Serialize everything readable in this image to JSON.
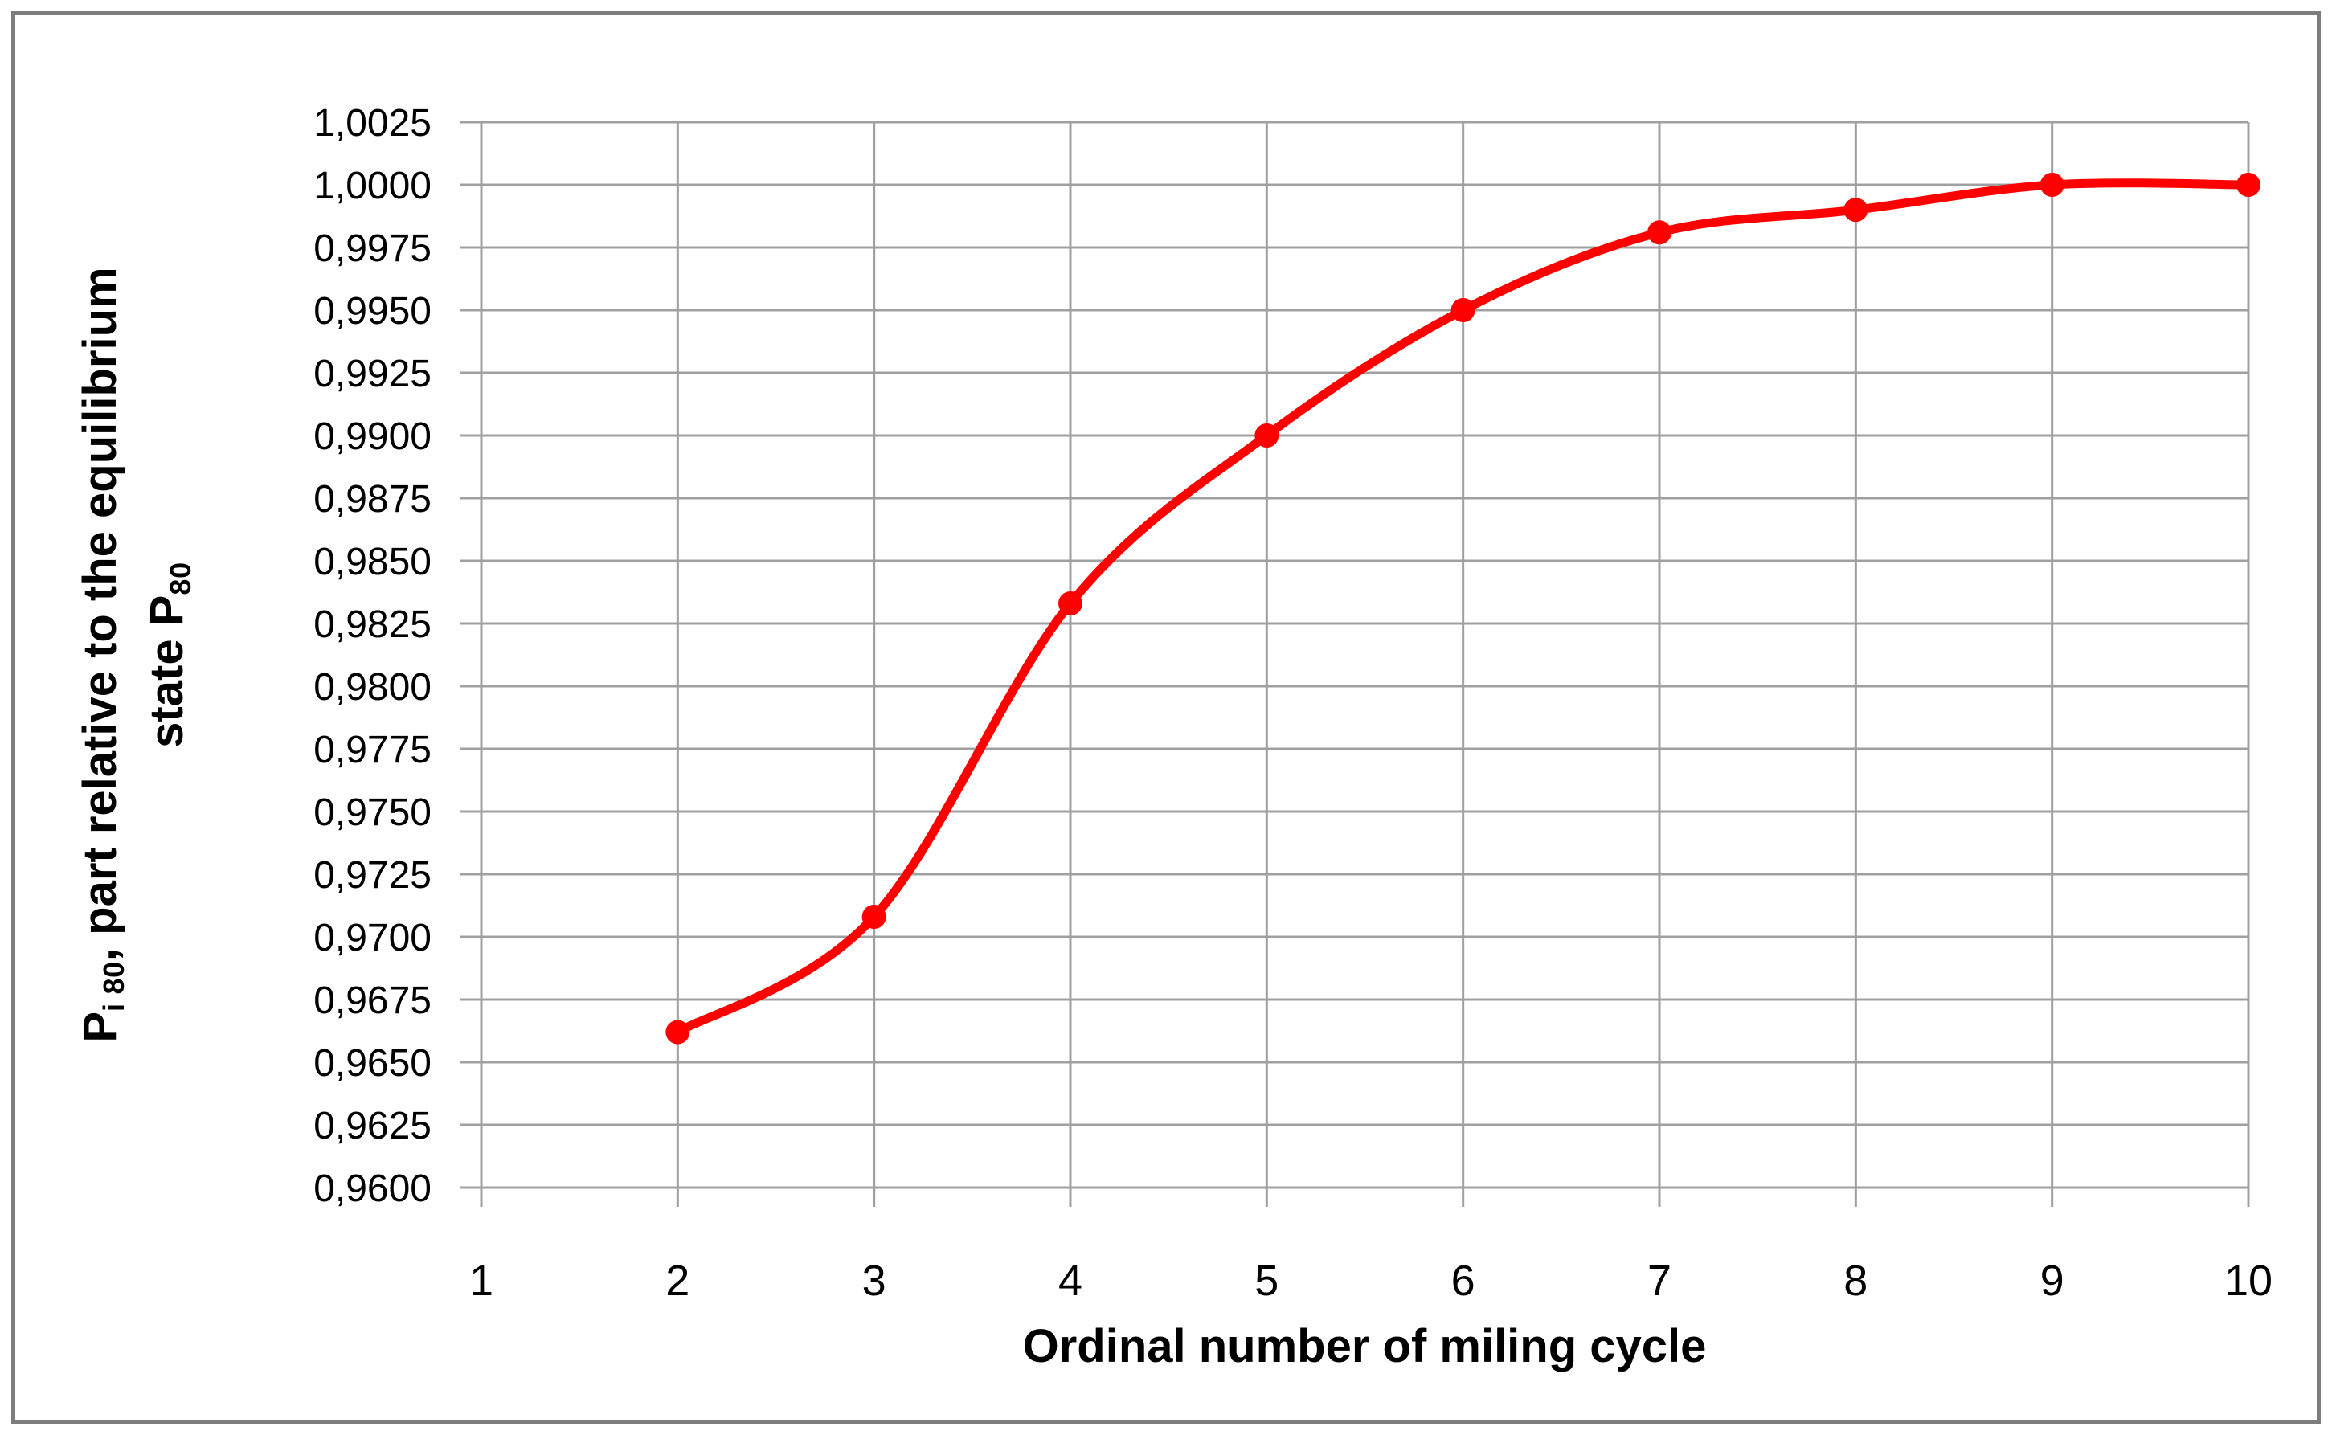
{
  "chart_data": {
    "type": "line",
    "x": [
      2,
      3,
      4,
      5,
      6,
      7,
      8,
      9,
      10
    ],
    "y": [
      0.9662,
      0.9708,
      0.9833,
      0.99,
      0.995,
      0.9981,
      0.999,
      1.0,
      1.0
    ],
    "xlabel": "Ordinal number of miling cycle",
    "ylabel_plain": "P i80, part relative to the equilibrium state P80",
    "ylabel_lines": [
      [
        {
          "t": "P",
          "sub": false
        },
        {
          "t": "i 80",
          "sub": true
        },
        {
          "t": ", part relative to the equilibrium",
          "sub": false
        }
      ],
      [
        {
          "t": "state P",
          "sub": false
        },
        {
          "t": "80",
          "sub": true
        }
      ]
    ],
    "x_ticks": {
      "values": [
        1,
        2,
        3,
        4,
        5,
        6,
        7,
        8,
        9,
        10
      ],
      "labels": [
        "1",
        "2",
        "3",
        "4",
        "5",
        "6",
        "7",
        "8",
        "9",
        "10"
      ]
    },
    "y_ticks": {
      "values": [
        1.0025,
        1.0,
        0.9975,
        0.995,
        0.9925,
        0.99,
        0.9875,
        0.985,
        0.9825,
        0.98,
        0.9775,
        0.975,
        0.9725,
        0.97,
        0.9675,
        0.965,
        0.9625,
        0.96
      ],
      "labels": [
        "1,0025",
        "1,0000",
        "0,9975",
        "0,9950",
        "0,9925",
        "0,9900",
        "0,9875",
        "0,9850",
        "0,9825",
        "0,9800",
        "0,9775",
        "0,9750",
        "0,9725",
        "0,9700",
        "0,9675",
        "0,9650",
        "0,9625",
        "0,9600"
      ]
    },
    "xlim": [
      1,
      10
    ],
    "ylim": [
      0.96,
      1.0025
    ],
    "grid": true,
    "legend": false,
    "line_smooth": true,
    "colors": {
      "line": "#FF0000",
      "marker": "#FF0000",
      "grid": "#A0A0A0",
      "frame": "#7D7D7D",
      "text": "#000000",
      "background": "#FFFFFF"
    }
  }
}
